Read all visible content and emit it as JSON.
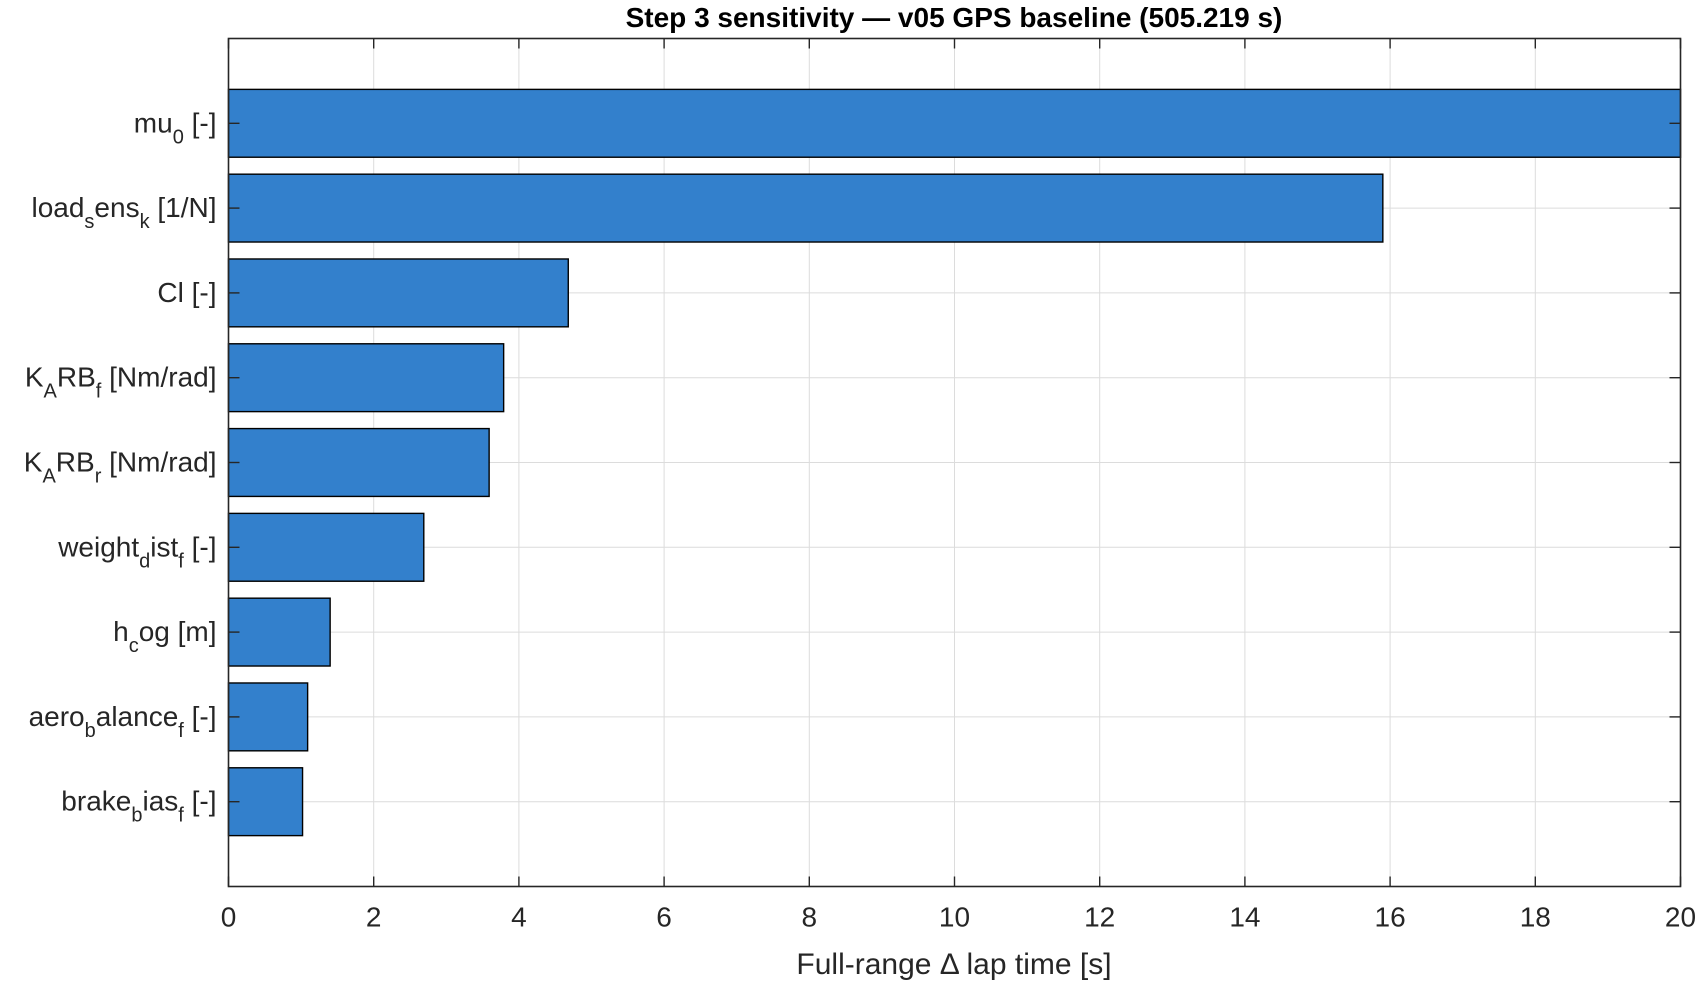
{
  "chart_data": {
    "type": "bar",
    "orientation": "horizontal",
    "title": "Step 3 sensitivity — v05 GPS baseline (505.219 s)",
    "xlabel": "Full-range Δ lap time [s]",
    "ylabel": "",
    "xlim": [
      0,
      20
    ],
    "xticks": [
      "0",
      "2",
      "4",
      "6",
      "8",
      "10",
      "12",
      "14",
      "16",
      "18",
      "20"
    ],
    "grid": true,
    "bar_color": "#3380CC",
    "bar_edge_color": "#000000",
    "categories": [
      {
        "parts": [
          {
            "t": "mu"
          },
          {
            "t": "0",
            "sub": true
          },
          {
            "t": " [-]"
          }
        ]
      },
      {
        "parts": [
          {
            "t": "load"
          },
          {
            "t": "s",
            "sub": true
          },
          {
            "t": "ens"
          },
          {
            "t": "k",
            "sub": true
          },
          {
            "t": " [1/N]"
          }
        ]
      },
      {
        "parts": [
          {
            "t": "Cl [-]"
          }
        ]
      },
      {
        "parts": [
          {
            "t": "K"
          },
          {
            "t": "A",
            "sub": true
          },
          {
            "t": "RB"
          },
          {
            "t": "f",
            "sub": true
          },
          {
            "t": " [Nm/rad]"
          }
        ]
      },
      {
        "parts": [
          {
            "t": "K"
          },
          {
            "t": "A",
            "sub": true
          },
          {
            "t": "RB"
          },
          {
            "t": "r",
            "sub": true
          },
          {
            "t": " [Nm/rad]"
          }
        ]
      },
      {
        "parts": [
          {
            "t": "weight"
          },
          {
            "t": "d",
            "sub": true
          },
          {
            "t": "ist"
          },
          {
            "t": "f",
            "sub": true
          },
          {
            "t": " [-]"
          }
        ]
      },
      {
        "parts": [
          {
            "t": "h"
          },
          {
            "t": "c",
            "sub": true
          },
          {
            "t": "og [m]"
          }
        ]
      },
      {
        "parts": [
          {
            "t": "aero"
          },
          {
            "t": "b",
            "sub": true
          },
          {
            "t": "alance"
          },
          {
            "t": "f",
            "sub": true
          },
          {
            "t": " [-]"
          }
        ]
      },
      {
        "parts": [
          {
            "t": "brake"
          },
          {
            "t": "b",
            "sub": true
          },
          {
            "t": "ias"
          },
          {
            "t": "f",
            "sub": true
          },
          {
            "t": " [-]"
          }
        ]
      }
    ],
    "values": [
      20.0,
      15.9,
      4.68,
      3.79,
      3.59,
      2.69,
      1.4,
      1.09,
      1.02
    ]
  }
}
